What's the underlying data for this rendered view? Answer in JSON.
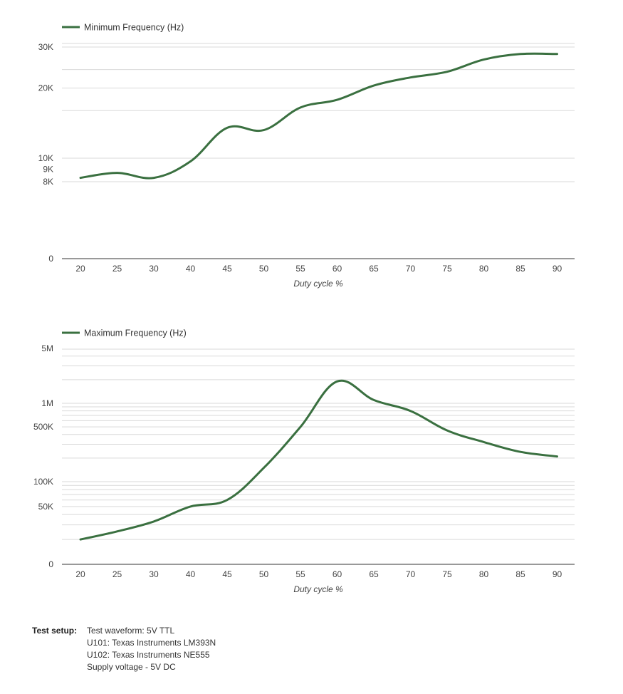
{
  "colors": {
    "series": "#3a7040",
    "grid": "#d9d9d9",
    "axis": "#333333"
  },
  "chart_data": [
    {
      "type": "line",
      "legend": "Minimum Frequency (Hz)",
      "xlabel": "Duty cycle %",
      "x": [
        20,
        25,
        30,
        40,
        45,
        50,
        55,
        60,
        65,
        70,
        75,
        80,
        85,
        90
      ],
      "values": [
        8300,
        8700,
        8300,
        9700,
        13500,
        13200,
        16500,
        17800,
        20500,
        22200,
        23500,
        26500,
        28000,
        28000
      ],
      "yticks": [
        {
          "label": "30K",
          "value": 30000
        },
        {
          "label": "20K",
          "value": 20000
        },
        {
          "label": "10K",
          "value": 10000
        },
        {
          "label": "9K",
          "value": 9000
        },
        {
          "label": "8K",
          "value": 8000
        },
        {
          "label": "0",
          "value": 0
        }
      ],
      "scale": "log"
    },
    {
      "type": "line",
      "legend": "Maximum Frequency (Hz)",
      "xlabel": "Duty cycle %",
      "x": [
        20,
        25,
        30,
        40,
        45,
        50,
        55,
        60,
        65,
        70,
        75,
        80,
        85,
        90
      ],
      "values": [
        20000,
        25000,
        33000,
        50000,
        60000,
        150000,
        500000,
        1900000,
        1100000,
        800000,
        450000,
        320000,
        240000,
        210000
      ],
      "yticks": [
        {
          "label": "5M",
          "value": 5000000
        },
        {
          "label": "1M",
          "value": 1000000
        },
        {
          "label": "500K",
          "value": 500000
        },
        {
          "label": "100K",
          "value": 100000
        },
        {
          "label": "50K",
          "value": 50000
        },
        {
          "label": "0",
          "value": 0
        }
      ],
      "scale": "log"
    }
  ],
  "test_setup": {
    "label": "Test setup:",
    "lines": [
      "Test waveform: 5V TTL",
      "U101: Texas Instruments LM393N",
      "U102: Texas Instruments NE555",
      "Supply voltage - 5V DC"
    ]
  }
}
